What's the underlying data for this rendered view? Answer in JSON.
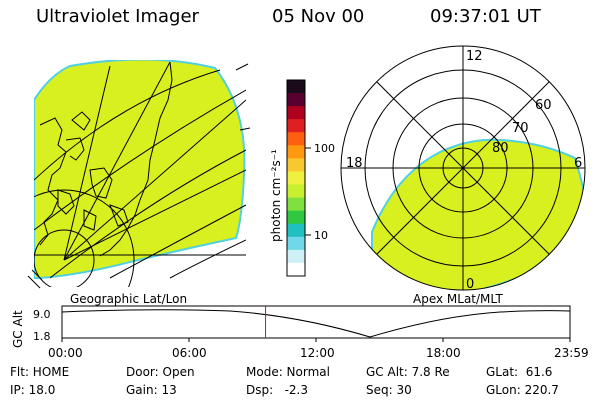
{
  "header": {
    "instrument": "Ultraviolet Imager",
    "date": "05 Nov 00",
    "time": "09:37:01 UT"
  },
  "left_map": {
    "label": "Geographic Lat/Lon"
  },
  "right_map": {
    "label": "Apex MLat/MLT",
    "mlt_labels": [
      "12",
      "18",
      "6",
      "0"
    ],
    "mlat_labels": [
      "60",
      "70",
      "80"
    ]
  },
  "colorbar": {
    "unit": "photon cm⁻²s⁻¹",
    "ticks": [
      "100",
      "10"
    ],
    "colors": [
      "#1a0a1a",
      "#5a0030",
      "#b00020",
      "#e02020",
      "#ff6010",
      "#ff9a10",
      "#f8c830",
      "#f0f040",
      "#c8f030",
      "#80e040",
      "#30c840",
      "#20c0c0",
      "#70d8e8",
      "#d0f0f8",
      "#ffffff"
    ]
  },
  "timeline": {
    "ylabel": "GC Alt",
    "y_ticks": [
      "9.0",
      "1.8"
    ],
    "x_ticks": [
      "00:00",
      "06:00",
      "12:00",
      "18:00",
      "23:59"
    ],
    "current_time_hours": 9.617,
    "marker_color": "#ff0000"
  },
  "info": {
    "flt": "Flt: HOME",
    "ip": "IP: 18.0",
    "door": "Door: Open",
    "gain": "Gain: 13",
    "mode": "Mode: Normal",
    "dsp": "Dsp:   -2.3",
    "gcalt": "GC Alt: 7.8 Re",
    "seq": "Seq: 30",
    "glat": "GLat:  61.6",
    "glon": "GLon: 220.7"
  },
  "colors": {
    "aurora_fill": "#d8f020",
    "aurora_edge": "#50d0e0"
  }
}
